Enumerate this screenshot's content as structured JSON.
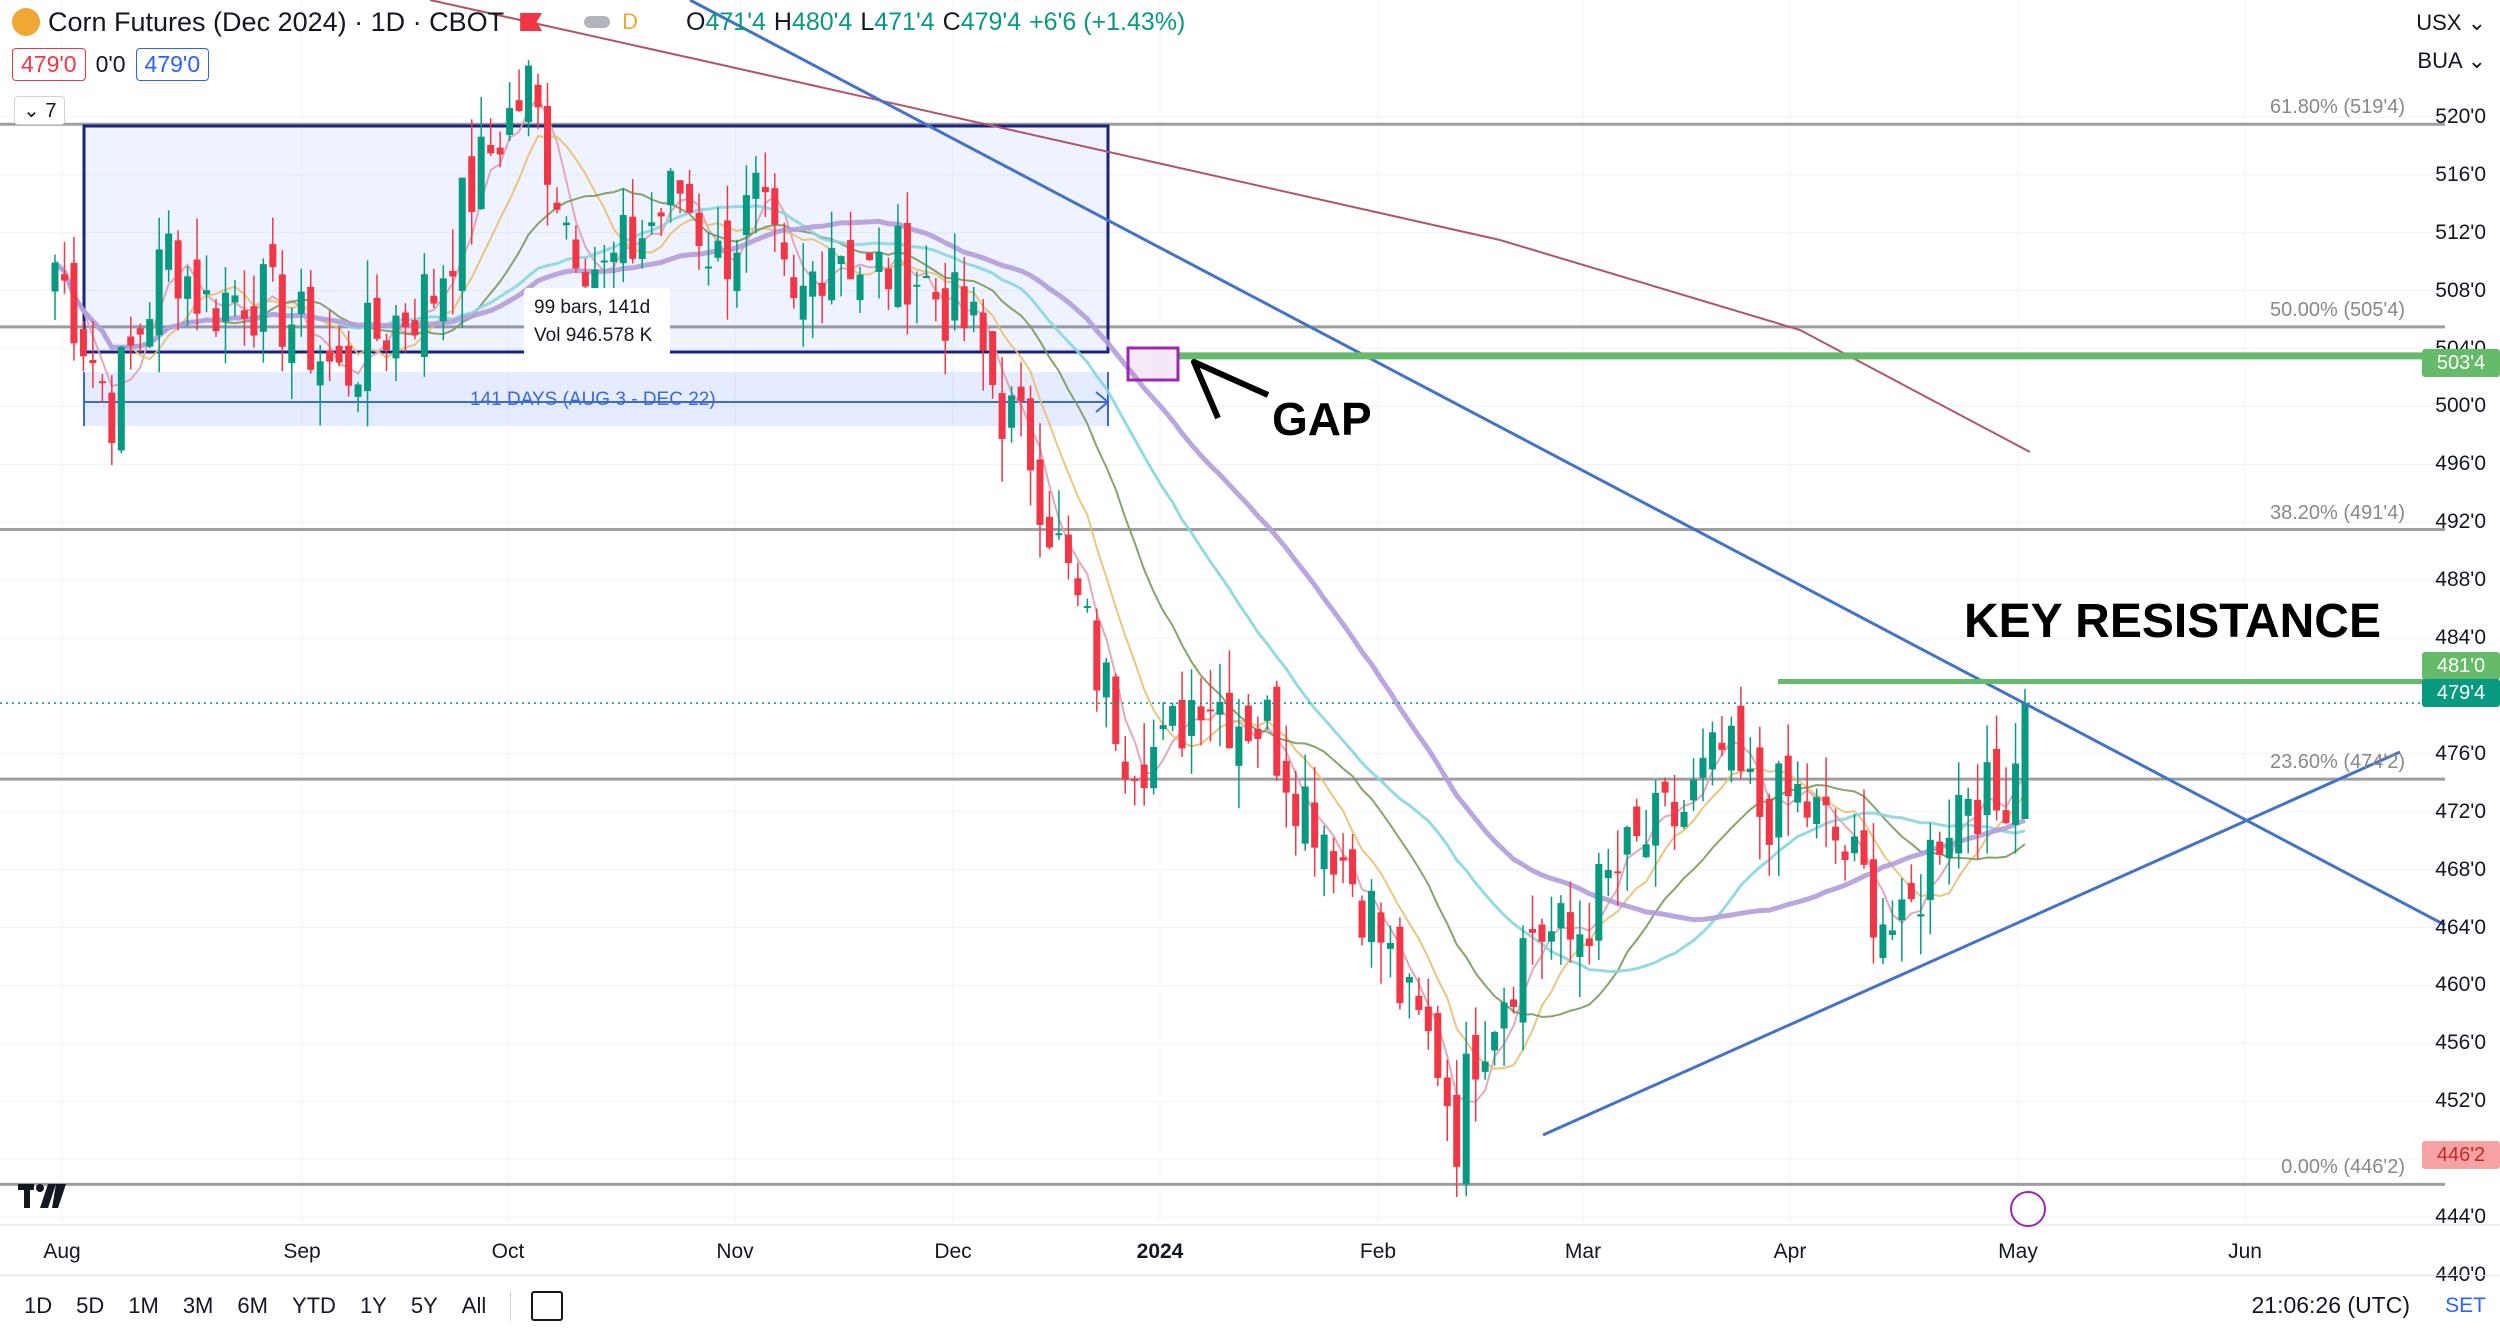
{
  "header": {
    "title": "Corn Futures (Dec 2024) · 1D · CBOT",
    "d_label": "D",
    "ohlc": [
      {
        "label": "O",
        "value": "471'4"
      },
      {
        "label": "H",
        "value": "480'4"
      },
      {
        "label": "L",
        "value": "471'4"
      },
      {
        "label": "C",
        "value": "479'4"
      }
    ],
    "change": "+6'6 (+1.43%)",
    "sell_price": "479'0",
    "spread": "0'0",
    "buy_price": "479'0",
    "indicator_count": "7"
  },
  "right_controls": {
    "currency": "USX",
    "unit": "BUA"
  },
  "price_axis": [
    "520'0",
    "516'0",
    "512'0",
    "508'0",
    "504'0",
    "500'0",
    "496'0",
    "492'0",
    "488'0",
    "484'0",
    "476'0",
    "472'0",
    "468'0",
    "464'0",
    "460'0",
    "456'0",
    "452'0",
    "448'0",
    "444'0",
    "440'0"
  ],
  "price_tags": [
    {
      "label": "503'4",
      "color": "#66bb6a"
    },
    {
      "label": "481'0",
      "color": "#66bb6a"
    },
    {
      "label": "479'4",
      "color": "#089981"
    },
    {
      "label": "446'2",
      "color": "#f7a3a3"
    }
  ],
  "fib_levels": [
    {
      "label": "61.80% (519'4)",
      "price": 519.5
    },
    {
      "label": "50.00% (505'4)",
      "price": 505.5
    },
    {
      "label": "38.20% (491'4)",
      "price": 491.5
    },
    {
      "label": "23.60% (474'2)",
      "price": 474.25
    },
    {
      "label": "0.00% (446'2)",
      "price": 446.25
    }
  ],
  "time_axis": [
    "Aug",
    "Sep",
    "Oct",
    "Nov",
    "Dec",
    "2024",
    "Feb",
    "Mar",
    "Apr",
    "May",
    "Jun"
  ],
  "annotations": {
    "gap": "GAP",
    "key_resistance": "KEY RESISTANCE",
    "range_days": "141 DAYS (AUG 3 - DEC 22)",
    "range_bars": "99 bars, 141d",
    "range_vol": "Vol 946.578 K"
  },
  "toolbar": {
    "timeframes": [
      "1D",
      "5D",
      "1M",
      "3M",
      "6M",
      "YTD",
      "1Y",
      "5Y",
      "All"
    ],
    "clock": "21:06:26 (UTC)",
    "set_label": "SET"
  },
  "colors": {
    "up": "#089981",
    "down": "#f23645",
    "fib": "#9e9e9e",
    "trend": "#4472c4",
    "resistance": "#66bb6a",
    "ma_purple": "#b39ddb",
    "ma_cyan": "#8ad6e0",
    "ma_maroon": "#b0566a",
    "ma_olive": "#7a9a5a",
    "ma_orange": "#e8c070",
    "ma_pink": "#e0a0b0"
  },
  "chart_data": {
    "type": "candlestick",
    "y_range": [
      439,
      524
    ],
    "x_labels": [
      "Aug",
      "Sep",
      "Oct",
      "Nov",
      "Dec",
      "2024",
      "Feb",
      "Mar",
      "Apr",
      "May",
      "Jun"
    ],
    "price_path": [
      [
        0,
        510
      ],
      [
        6,
        500
      ],
      [
        12,
        511
      ],
      [
        16,
        507
      ],
      [
        20,
        508
      ],
      [
        25,
        506
      ],
      [
        30,
        502
      ],
      [
        34,
        505
      ],
      [
        40,
        508
      ],
      [
        44,
        515
      ],
      [
        47,
        519
      ],
      [
        50,
        522
      ],
      [
        54,
        513
      ],
      [
        58,
        509
      ],
      [
        62,
        512
      ],
      [
        66,
        515
      ],
      [
        70,
        510
      ],
      [
        74,
        514
      ],
      [
        78,
        506
      ],
      [
        82,
        512
      ],
      [
        86,
        509
      ],
      [
        90,
        510
      ],
      [
        94,
        507
      ],
      [
        97,
        505
      ],
      [
        100,
        500
      ],
      [
        103,
        497
      ],
      [
        106,
        490
      ],
      [
        110,
        482
      ],
      [
        113,
        477
      ],
      [
        117,
        476
      ],
      [
        121,
        481
      ],
      [
        124,
        479
      ],
      [
        128,
        478
      ],
      [
        131,
        474
      ],
      [
        135,
        470
      ],
      [
        139,
        465
      ],
      [
        143,
        458
      ],
      [
        146,
        455
      ],
      [
        148,
        450
      ],
      [
        150,
        456
      ],
      [
        153,
        460
      ],
      [
        156,
        464
      ],
      [
        160,
        463
      ],
      [
        164,
        467
      ],
      [
        168,
        470
      ],
      [
        172,
        472
      ],
      [
        176,
        476
      ],
      [
        180,
        472
      ],
      [
        184,
        473
      ],
      [
        188,
        470
      ],
      [
        192,
        466
      ],
      [
        195,
        463
      ],
      [
        199,
        471
      ],
      [
        202,
        474
      ],
      [
        205,
        472
      ],
      [
        208,
        478
      ]
    ],
    "last_index": 208
  }
}
